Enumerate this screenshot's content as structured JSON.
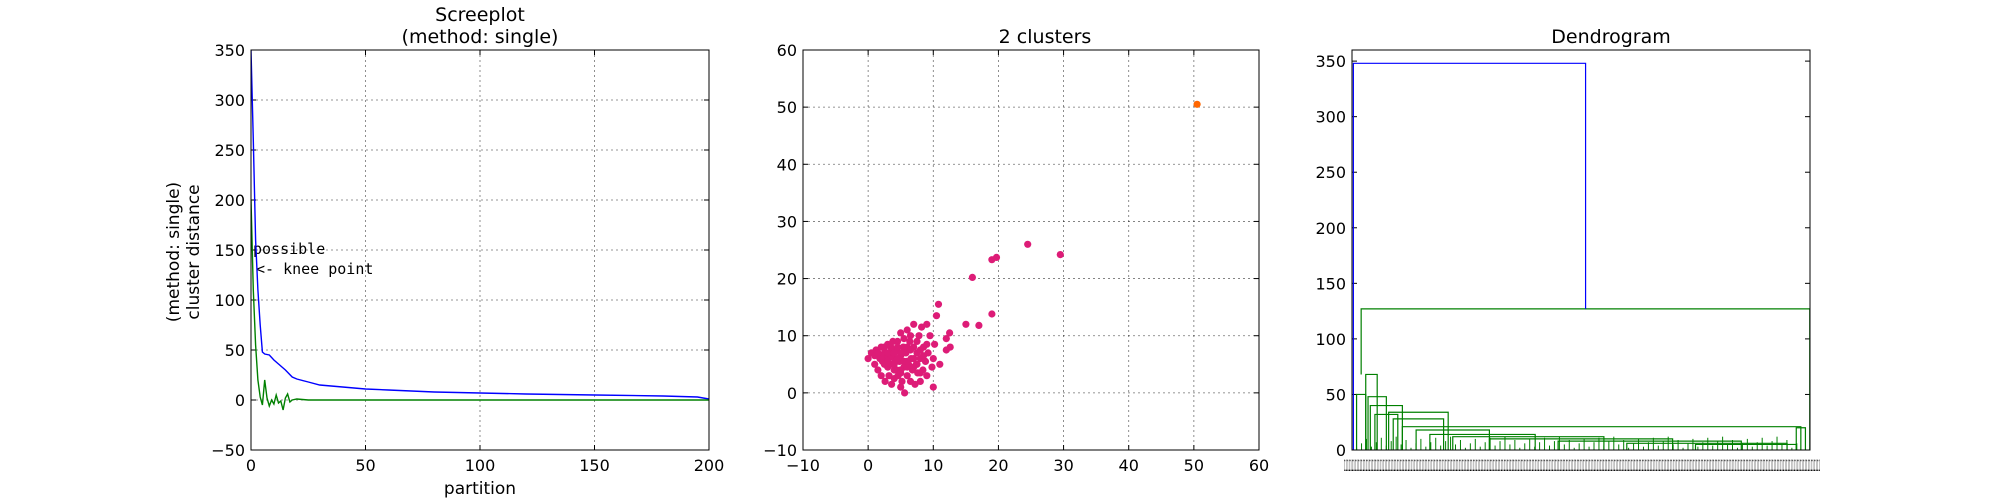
{
  "chart_data": [
    {
      "type": "line",
      "title": "Screeplot",
      "subtitle": "(method: single)",
      "xlabel": "partition",
      "ylabel": "(method: single)",
      "ylabel2": "cluster distance",
      "xlim": [
        0,
        200
      ],
      "ylim": [
        -50,
        350
      ],
      "xticks": [
        0,
        50,
        100,
        150,
        200
      ],
      "yticks": [
        -50,
        0,
        50,
        100,
        150,
        200,
        250,
        300,
        350
      ],
      "grid": true,
      "annotation": {
        "line1": "possible",
        "line2": "<- knee point",
        "x": 2,
        "y": 127
      },
      "series": [
        {
          "color": "#0000ff",
          "x": [
            0,
            1,
            2,
            3,
            4,
            5,
            6,
            8,
            10,
            12,
            15,
            18,
            20,
            25,
            30,
            40,
            50,
            60,
            80,
            100,
            120,
            150,
            180,
            195,
            200
          ],
          "y": [
            350,
            260,
            160,
            110,
            75,
            48,
            46,
            45,
            40,
            36,
            30,
            23,
            21,
            18,
            15,
            13,
            11,
            10,
            8,
            7,
            6,
            5,
            4,
            3,
            1
          ]
        },
        {
          "color": "#008000",
          "x": [
            0,
            1,
            2,
            3,
            4,
            5,
            6,
            7,
            8,
            9,
            10,
            11,
            12,
            13,
            14,
            15,
            16,
            17,
            18,
            20,
            25,
            30,
            50,
            100,
            150,
            200
          ],
          "y": [
            200,
            110,
            55,
            20,
            3,
            -5,
            20,
            2,
            -6,
            0,
            -4,
            5,
            -3,
            -1,
            -10,
            2,
            6,
            -2,
            0,
            1,
            0,
            0,
            0,
            0,
            0,
            0
          ]
        }
      ]
    },
    {
      "type": "scatter",
      "title": "2 clusters",
      "xlim": [
        -10,
        60
      ],
      "ylim": [
        -10,
        60
      ],
      "xticks": [
        -10,
        0,
        10,
        20,
        30,
        40,
        50,
        60
      ],
      "yticks": [
        -10,
        0,
        10,
        20,
        30,
        40,
        50,
        60
      ],
      "grid": true,
      "series": [
        {
          "color": "#dd1c77",
          "points": [
            [
              0,
              6
            ],
            [
              0.5,
              7
            ],
            [
              1,
              5
            ],
            [
              1.2,
              7.5
            ],
            [
              1.5,
              4
            ],
            [
              1.8,
              6
            ],
            [
              2,
              8
            ],
            [
              2,
              3
            ],
            [
              2.2,
              5.5
            ],
            [
              2.5,
              7
            ],
            [
              2.6,
              2
            ],
            [
              2.8,
              6
            ],
            [
              3,
              8.5
            ],
            [
              3,
              4.5
            ],
            [
              3.2,
              3
            ],
            [
              3.4,
              7
            ],
            [
              3.5,
              5
            ],
            [
              3.6,
              1.5
            ],
            [
              3.8,
              9
            ],
            [
              4,
              6
            ],
            [
              4,
              2.5
            ],
            [
              4.2,
              7.5
            ],
            [
              4.4,
              4
            ],
            [
              4.5,
              8
            ],
            [
              4.6,
              3
            ],
            [
              4.8,
              5.5
            ],
            [
              5,
              10.5
            ],
            [
              5,
              1
            ],
            [
              5,
              6.5
            ],
            [
              5.2,
              2
            ],
            [
              5.4,
              8
            ],
            [
              5.5,
              4.5
            ],
            [
              5.6,
              0
            ],
            [
              5.8,
              7
            ],
            [
              6,
              11
            ],
            [
              6,
              3
            ],
            [
              6.2,
              5
            ],
            [
              6.4,
              9
            ],
            [
              6.5,
              2
            ],
            [
              6.6,
              6
            ],
            [
              6.8,
              4
            ],
            [
              7,
              8
            ],
            [
              7,
              12
            ],
            [
              7.2,
              1.5
            ],
            [
              7.4,
              5
            ],
            [
              7.5,
              7
            ],
            [
              7.6,
              3.5
            ],
            [
              7.8,
              10
            ],
            [
              8,
              6
            ],
            [
              8,
              2
            ],
            [
              8.2,
              11.5
            ],
            [
              8.4,
              4
            ],
            [
              8.5,
              8
            ],
            [
              8.8,
              5.5
            ],
            [
              9,
              12
            ],
            [
              9,
              3
            ],
            [
              9.2,
              7
            ],
            [
              9.5,
              10
            ],
            [
              9.8,
              4.5
            ],
            [
              10,
              6
            ],
            [
              10,
              1
            ],
            [
              10.2,
              8.5
            ],
            [
              10.5,
              13.5
            ],
            [
              10.8,
              15.5
            ],
            [
              11,
              5
            ],
            [
              12,
              9.5
            ],
            [
              12.5,
              10.5
            ],
            [
              12,
              7.5
            ],
            [
              12.6,
              8
            ],
            [
              15,
              12
            ],
            [
              16,
              20.2
            ],
            [
              17,
              11.8
            ],
            [
              19,
              13.8
            ],
            [
              19,
              23.3
            ],
            [
              19.7,
              23.7
            ],
            [
              24.5,
              26
            ],
            [
              29.5,
              24.2
            ],
            [
              3,
              6
            ],
            [
              4,
              5
            ],
            [
              5,
              7
            ],
            [
              6,
              8
            ],
            [
              2.5,
              5
            ],
            [
              3.5,
              6.5
            ],
            [
              4.5,
              6
            ],
            [
              5.5,
              5.5
            ],
            [
              6.5,
              7.5
            ],
            [
              7.5,
              5
            ],
            [
              8.5,
              6.5
            ],
            [
              1,
              6.5
            ],
            [
              2,
              6.5
            ],
            [
              3,
              7
            ],
            [
              4,
              7
            ],
            [
              5,
              4
            ],
            [
              6,
              4.5
            ],
            [
              7,
              6
            ],
            [
              8,
              7.5
            ],
            [
              9,
              8.5
            ],
            [
              1.5,
              7
            ],
            [
              2.5,
              8
            ],
            [
              3.5,
              8
            ],
            [
              4.5,
              9
            ],
            [
              5.5,
              9.5
            ],
            [
              6.5,
              10
            ],
            [
              7.5,
              9
            ],
            [
              3,
              5.5
            ],
            [
              4,
              4
            ],
            [
              5,
              3.5
            ],
            [
              6,
              5.5
            ],
            [
              7,
              4.5
            ],
            [
              8,
              3.5
            ]
          ]
        },
        {
          "color": "#ff6600",
          "points": [
            [
              50.5,
              50.5
            ]
          ]
        }
      ]
    },
    {
      "type": "dendrogram",
      "title": "Dendrogram",
      "ylim": [
        0,
        360
      ],
      "yticks": [
        0,
        50,
        100,
        150,
        200,
        250,
        300,
        350
      ],
      "grid": false,
      "xtick_labels_overlapping": "1 1 1 1 1 1 1 1 1 1 1 1 1 1 1 1 1 1 1 1 1 1 1 1 1 1 1 1 1 1 1 1 1 1 1 1 1 1 1 1 1 1 1 1 1 1 1 1 1 1 1 1 1 1 1 1 1 1 1 1 1 1 1 1 1 1 1 1 1 1 1 1 1 1 1 1 1 1 1 1 1 1 1 1 1 1 1 1 1 1 1 1 1 1 1 1 1 1 1 1 1 1 1 1 1 1 1 1 1 1 1 1 1 1 1 1 1 1 1 1 1 1 1 1 1 1 1 1 1 1 1 1 1 1 1 1 1 1 1 1 1 1 1 1 1 1 1 1 1 1 1 1 1 1 1 1 1 1 1 1 1 1 1 1 1 1 1 1 1 1 1 1 1 1 1 1 1 1 1 1 1 1 1 1 1 1 1 1 1 1 1 1 1 1 1 1 1 1 1 1 1 1 1 1 1 1 1 1 1 1 1 1 1 1 1 1 1 1 1 1 1 1 1 1 1 1 1 1 1 1 1 1 1 1 1 1 1 1 1 1 1 1 1 1 1 1 1 1 1 1 1 1 1 1 1 1 1 1 1 1 1 1 1 1 1 1 1 1 1 1 1 1 1 1 1 1 1 1 1 1 1 1 1 1 1 1 1 1 1 1 1 1 1 1 1 1 1 1 1 1 1 1 1 1 1 1 1",
      "top_link": {
        "color": "#0000ff",
        "height": 348
      },
      "main_link": {
        "color": "#008000",
        "height": 127
      },
      "links": [
        {
          "color": "#008000",
          "a": [
            0.03,
            0
          ],
          "b": [
            0.055,
            0
          ],
          "h": 68,
          "mid": 0.042
        },
        {
          "color": "#008000",
          "a": [
            0.01,
            0
          ],
          "b": [
            0.03,
            0
          ],
          "h": 50,
          "mid": 0.02
        },
        {
          "color": "#008000",
          "a": [
            0.035,
            0
          ],
          "b": [
            0.075,
            0
          ],
          "h": 48,
          "mid": 0.055
        },
        {
          "color": "#008000",
          "a": [
            0.04,
            0
          ],
          "b": [
            0.11,
            0
          ],
          "h": 40,
          "mid": 0.075
        },
        {
          "color": "#008000",
          "a": [
            0.05,
            0
          ],
          "b": [
            0.1,
            0
          ],
          "h": 32,
          "mid": 0.075
        },
        {
          "color": "#008000",
          "a": [
            0.08,
            0
          ],
          "b": [
            0.21,
            0
          ],
          "h": 34,
          "mid": 0.145
        },
        {
          "color": "#008000",
          "a": [
            0.09,
            0
          ],
          "b": [
            0.2,
            0
          ],
          "h": 28,
          "mid": 0.145
        },
        {
          "color": "#008000",
          "a": [
            0.11,
            0
          ],
          "b": [
            0.98,
            0
          ],
          "h": 21,
          "mid": 0.55
        },
        {
          "color": "#008000",
          "a": [
            0.14,
            0
          ],
          "b": [
            0.3,
            0
          ],
          "h": 18,
          "mid": 0.22
        },
        {
          "color": "#008000",
          "a": [
            0.17,
            0
          ],
          "b": [
            0.4,
            0
          ],
          "h": 14,
          "mid": 0.285
        },
        {
          "color": "#008000",
          "a": [
            0.22,
            0
          ],
          "b": [
            0.55,
            0
          ],
          "h": 12,
          "mid": 0.385
        },
        {
          "color": "#008000",
          "a": [
            0.3,
            0
          ],
          "b": [
            0.7,
            0
          ],
          "h": 10,
          "mid": 0.5
        },
        {
          "color": "#008000",
          "a": [
            0.45,
            0
          ],
          "b": [
            0.85,
            0
          ],
          "h": 8,
          "mid": 0.65
        },
        {
          "color": "#008000",
          "a": [
            0.6,
            0
          ],
          "b": [
            0.95,
            0
          ],
          "h": 6,
          "mid": 0.775
        },
        {
          "color": "#008000",
          "a": [
            0.75,
            0
          ],
          "b": [
            0.97,
            0
          ],
          "h": 5,
          "mid": 0.86
        },
        {
          "color": "#008000",
          "a": [
            0.97,
            0
          ],
          "b": [
            0.99,
            0
          ],
          "h": 20,
          "mid": 0.98
        }
      ]
    }
  ]
}
